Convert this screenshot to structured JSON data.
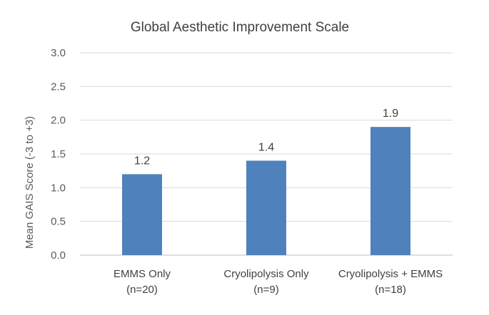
{
  "chart_data": {
    "type": "bar",
    "title": "Global Aesthetic Improvement Scale",
    "ylabel": "Mean GAIS Score  (-3 to +3)",
    "xlabel": "",
    "categories": [
      [
        "EMMS Only",
        "(n=20)"
      ],
      [
        "Cryolipolysis Only",
        "(n=9)"
      ],
      [
        "Cryolipolysis + EMMS",
        "(n=18)"
      ]
    ],
    "values": [
      1.2,
      1.4,
      1.9
    ],
    "data_labels": [
      "1.2",
      "1.4",
      "1.9"
    ],
    "ylim": [
      0,
      3
    ],
    "yticks": [
      "0.0",
      "0.5",
      "1.0",
      "1.5",
      "2.0",
      "2.5",
      "3.0"
    ],
    "ytick_values": [
      0,
      0.5,
      1,
      1.5,
      2,
      2.5,
      3
    ],
    "grid": true,
    "legend": "none",
    "bar_color": "#4f81bd"
  }
}
